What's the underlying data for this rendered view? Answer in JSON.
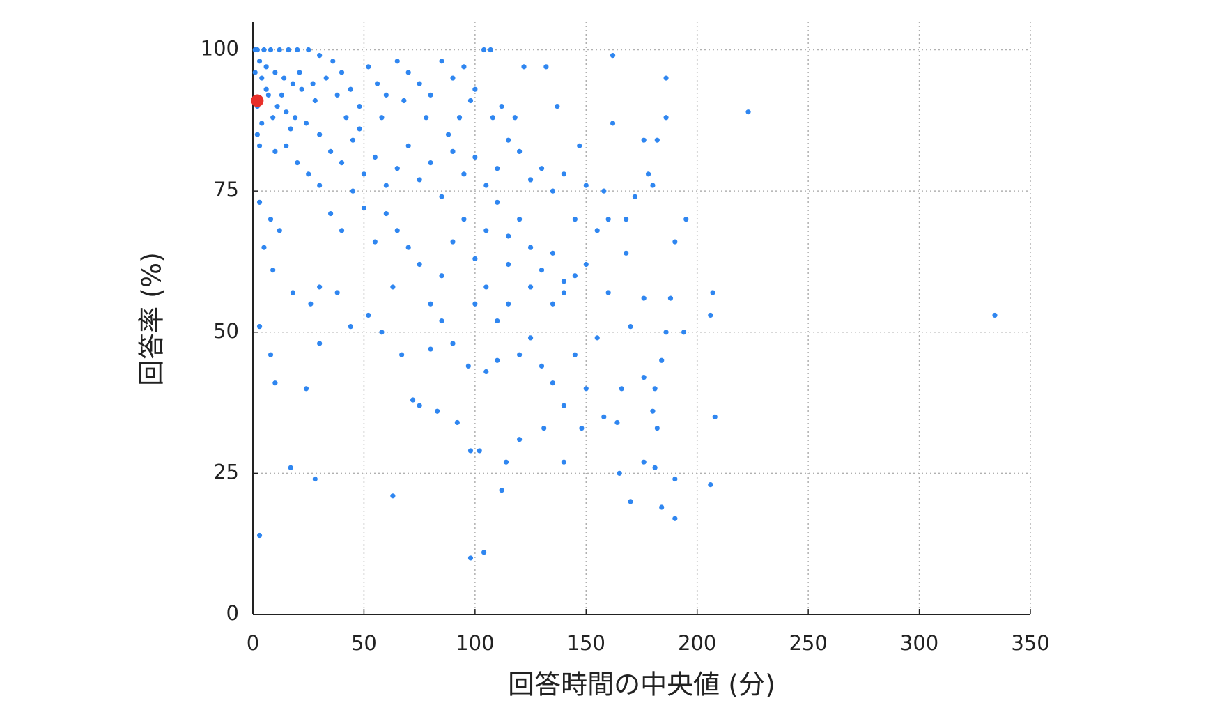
{
  "chart_data": {
    "type": "scatter",
    "x_label": "回答時間の中央値 (分)",
    "y_label": "回答率 (%)",
    "xlim": [
      0,
      350
    ],
    "ylim": [
      0,
      105
    ],
    "xticks": [
      0,
      50,
      100,
      150,
      200,
      250,
      300,
      350
    ],
    "yticks": [
      0,
      25,
      50,
      75,
      100
    ],
    "grid": true,
    "series": [
      {
        "color": "#2f86f0",
        "x": [
          2,
          5,
          8,
          12,
          16,
          20,
          25,
          30,
          3,
          6,
          10,
          14,
          18,
          22,
          4,
          7,
          11,
          15,
          19,
          24,
          28,
          33,
          36,
          40,
          44,
          48,
          52,
          56,
          60,
          65,
          70,
          75,
          80,
          85,
          90,
          95,
          100,
          104,
          107,
          122,
          132,
          162,
          186,
          223,
          186,
          162,
          182,
          176,
          147,
          30,
          35,
          40,
          45,
          50,
          55,
          60,
          65,
          70,
          75,
          80,
          85,
          90,
          95,
          100,
          105,
          110,
          115,
          120,
          125,
          130,
          135,
          140,
          20,
          25,
          15,
          10,
          8,
          12,
          5,
          3,
          9,
          18,
          26,
          30,
          38,
          44,
          52,
          58,
          63,
          67,
          72,
          75,
          83,
          92,
          98,
          102,
          114,
          120,
          131,
          140,
          148,
          158,
          164,
          176,
          181,
          190,
          206,
          208,
          8,
          10,
          24,
          30,
          17,
          28,
          3,
          63,
          98,
          104,
          112,
          170,
          184,
          190,
          334,
          206,
          207,
          195,
          190,
          194,
          188,
          184,
          181,
          176,
          170,
          166,
          168,
          160,
          158,
          150,
          145,
          140,
          135,
          130,
          125,
          120,
          115,
          110,
          105,
          100,
          95,
          90,
          85,
          80,
          75,
          70,
          65,
          60,
          55,
          50,
          45,
          40,
          35,
          30,
          100,
          105,
          110,
          115,
          120,
          125,
          130,
          135,
          140,
          145,
          150,
          155,
          105,
          110,
          97,
          90,
          85,
          80,
          115,
          125,
          135,
          145,
          150,
          155,
          160,
          165,
          180,
          182,
          186,
          178,
          180,
          176,
          172,
          168,
          1,
          2,
          4,
          6,
          9,
          13,
          17,
          21,
          27,
          1,
          2,
          3,
          3,
          112,
          137,
          140,
          108,
          118,
          98,
          93,
          88,
          78,
          68,
          58,
          48,
          42,
          38
        ],
        "y": [
          100,
          100,
          100,
          100,
          100,
          100,
          100,
          99,
          98,
          97,
          96,
          95,
          94,
          93,
          95,
          92,
          90,
          89,
          88,
          87,
          91,
          95,
          98,
          96,
          93,
          90,
          97,
          94,
          92,
          98,
          96,
          94,
          92,
          98,
          95,
          97,
          93,
          100,
          100,
          97,
          97,
          99,
          95,
          89,
          88,
          87,
          84,
          84,
          83,
          85,
          82,
          80,
          84,
          78,
          81,
          76,
          79,
          83,
          77,
          80,
          74,
          82,
          78,
          81,
          76,
          79,
          84,
          82,
          77,
          79,
          75,
          78,
          80,
          78,
          83,
          82,
          70,
          68,
          65,
          73,
          61,
          57,
          55,
          58,
          57,
          51,
          53,
          50,
          58,
          46,
          38,
          37,
          36,
          34,
          29,
          29,
          27,
          31,
          33,
          27,
          33,
          35,
          34,
          27,
          26,
          24,
          23,
          35,
          46,
          41,
          40,
          48,
          26,
          24,
          14,
          21,
          10,
          11,
          22,
          20,
          19,
          17,
          53,
          53,
          57,
          70,
          66,
          50,
          56,
          45,
          40,
          42,
          51,
          40,
          64,
          70,
          75,
          62,
          60,
          57,
          55,
          61,
          65,
          70,
          67,
          73,
          68,
          63,
          70,
          66,
          60,
          55,
          62,
          65,
          68,
          71,
          66,
          72,
          75,
          68,
          71,
          76,
          55,
          58,
          52,
          55,
          46,
          49,
          44,
          41,
          37,
          46,
          40,
          49,
          43,
          45,
          44,
          48,
          52,
          47,
          62,
          58,
          64,
          70,
          76,
          68,
          57,
          25,
          36,
          33,
          50,
          78,
          76,
          56,
          74,
          70,
          96,
          90,
          87,
          93,
          88,
          92,
          86,
          96,
          94,
          100,
          85,
          83,
          51,
          90,
          90,
          59,
          88,
          88,
          91,
          88,
          85,
          88,
          91,
          88,
          86,
          88,
          92
        ]
      },
      {
        "color": "#e8302a",
        "x": [
          2
        ],
        "y": [
          91
        ]
      }
    ]
  }
}
